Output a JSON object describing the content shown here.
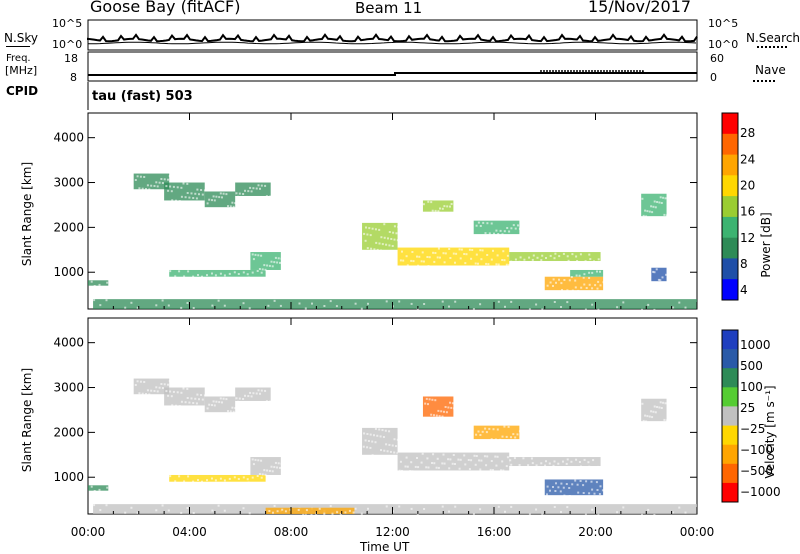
{
  "header": {
    "station": "Goose Bay (fitACF)",
    "beam": "Beam 11",
    "date": "15/Nov/2017"
  },
  "top_panels": {
    "nsky_label": "N.Sky",
    "nsearch_label": "N.Search",
    "noise_ticks": [
      "10^5",
      "10^0"
    ],
    "freq_label": "Freq.",
    "freq_unit": "[MHz]",
    "freq_ticks": [
      "18",
      "8"
    ],
    "nave_label": "Nave",
    "nave_ticks": [
      "60",
      "0"
    ],
    "cpid_label": "CPID",
    "cpid_value": "tau (fast) 503"
  },
  "colors": {
    "power_scale": [
      "#0000ff",
      "#1f4fa8",
      "#2e8b57",
      "#3cb371",
      "#9acd32",
      "#ffd700",
      "#ffa500",
      "#ff6600",
      "#ff0000"
    ],
    "velocity_scale": [
      "#1f3fbf",
      "#2a5aa8",
      "#2e8b57",
      "#55cc33",
      "#c0c0c0",
      "#ffd700",
      "#ffa500",
      "#ff6600",
      "#ff0000"
    ]
  },
  "chart_data": [
    {
      "type": "heatmap",
      "name": "power",
      "xlabel": "Time UT",
      "ylabel": "Slant Range [km]",
      "x_ticks": [
        "00:00",
        "04:00",
        "08:00",
        "12:00",
        "16:00",
        "20:00",
        "00:00"
      ],
      "y_ticks": [
        1000,
        2000,
        3000,
        4000
      ],
      "xlim": [
        0,
        24
      ],
      "ylim": [
        180,
        4550
      ],
      "colorbar_label": "Power [dB]",
      "colorbar_ticks": [
        "28",
        "24",
        "20",
        "16",
        "12",
        "8",
        "4"
      ],
      "regions": [
        {
          "t0": 0.2,
          "t1": 24,
          "r0": 180,
          "r1": 400,
          "value": 8
        },
        {
          "t0": 0.0,
          "t1": 0.8,
          "r0": 700,
          "r1": 820,
          "value": 8
        },
        {
          "t0": 1.8,
          "t1": 3.2,
          "r0": 2850,
          "r1": 3200,
          "value": 10
        },
        {
          "t0": 3.0,
          "t1": 4.6,
          "r0": 2600,
          "r1": 3000,
          "value": 10
        },
        {
          "t0": 4.6,
          "t1": 5.8,
          "r0": 2450,
          "r1": 2800,
          "value": 8
        },
        {
          "t0": 5.8,
          "t1": 7.2,
          "r0": 2700,
          "r1": 3000,
          "value": 8
        },
        {
          "t0": 3.2,
          "t1": 7.0,
          "r0": 900,
          "r1": 1050,
          "value": 12
        },
        {
          "t0": 6.4,
          "t1": 7.6,
          "r0": 1050,
          "r1": 1450,
          "value": 12
        },
        {
          "t0": 10.8,
          "t1": 12.2,
          "r0": 1500,
          "r1": 2100,
          "value": 16
        },
        {
          "t0": 12.2,
          "t1": 16.6,
          "r0": 1150,
          "r1": 1550,
          "value": 20
        },
        {
          "t0": 16.6,
          "t1": 20.2,
          "r0": 1250,
          "r1": 1450,
          "value": 18
        },
        {
          "t0": 13.2,
          "t1": 14.4,
          "r0": 2350,
          "r1": 2600,
          "value": 18
        },
        {
          "t0": 15.2,
          "t1": 17.0,
          "r0": 1850,
          "r1": 2150,
          "value": 14
        },
        {
          "t0": 18.0,
          "t1": 20.3,
          "r0": 600,
          "r1": 900,
          "value": 26
        },
        {
          "t0": 19.0,
          "t1": 20.3,
          "r0": 900,
          "r1": 1050,
          "value": 14
        },
        {
          "t0": 21.8,
          "t1": 22.8,
          "r0": 2250,
          "r1": 2750,
          "value": 12
        },
        {
          "t0": 22.2,
          "t1": 22.8,
          "r0": 800,
          "r1": 1100,
          "value": 6
        }
      ]
    },
    {
      "type": "heatmap",
      "name": "velocity",
      "xlabel": "Time UT",
      "ylabel": "Slant Range [km]",
      "x_ticks": [
        "00:00",
        "04:00",
        "08:00",
        "12:00",
        "16:00",
        "20:00",
        "00:00"
      ],
      "y_ticks": [
        1000,
        2000,
        3000,
        4000
      ],
      "xlim": [
        0,
        24
      ],
      "ylim": [
        180,
        4550
      ],
      "colorbar_label": "Velocity [m s⁻¹]",
      "colorbar_ticks": [
        "1000",
        "500",
        "100",
        "25",
        "−25",
        "−100",
        "−500",
        "−1000"
      ],
      "regions": [
        {
          "t0": 0.2,
          "t1": 24,
          "r0": 180,
          "r1": 400,
          "value": 0
        },
        {
          "t0": 0.0,
          "t1": 0.8,
          "r0": 700,
          "r1": 820,
          "value": 150
        },
        {
          "t0": 1.8,
          "t1": 3.2,
          "r0": 2850,
          "r1": 3200,
          "value": 0
        },
        {
          "t0": 3.0,
          "t1": 4.6,
          "r0": 2600,
          "r1": 3000,
          "value": 0
        },
        {
          "t0": 4.6,
          "t1": 5.8,
          "r0": 2450,
          "r1": 2800,
          "value": 0
        },
        {
          "t0": 5.8,
          "t1": 7.2,
          "r0": 2700,
          "r1": 3000,
          "value": 0
        },
        {
          "t0": 3.2,
          "t1": 7.0,
          "r0": 900,
          "r1": 1050,
          "value": -40
        },
        {
          "t0": 6.4,
          "t1": 7.6,
          "r0": 1050,
          "r1": 1450,
          "value": 0
        },
        {
          "t0": 7.0,
          "t1": 10.5,
          "r0": 180,
          "r1": 320,
          "value": -150
        },
        {
          "t0": 10.8,
          "t1": 12.2,
          "r0": 1500,
          "r1": 2100,
          "value": 0
        },
        {
          "t0": 12.2,
          "t1": 16.6,
          "r0": 1150,
          "r1": 1550,
          "value": 0
        },
        {
          "t0": 16.6,
          "t1": 20.2,
          "r0": 1250,
          "r1": 1450,
          "value": 0
        },
        {
          "t0": 13.2,
          "t1": 14.4,
          "r0": 2350,
          "r1": 2800,
          "value": -300
        },
        {
          "t0": 15.2,
          "t1": 17.0,
          "r0": 1850,
          "r1": 2150,
          "value": -60
        },
        {
          "t0": 18.0,
          "t1": 20.3,
          "r0": 600,
          "r1": 950,
          "value": 300
        },
        {
          "t0": 21.8,
          "t1": 22.8,
          "r0": 2250,
          "r1": 2750,
          "value": 0
        }
      ]
    }
  ]
}
